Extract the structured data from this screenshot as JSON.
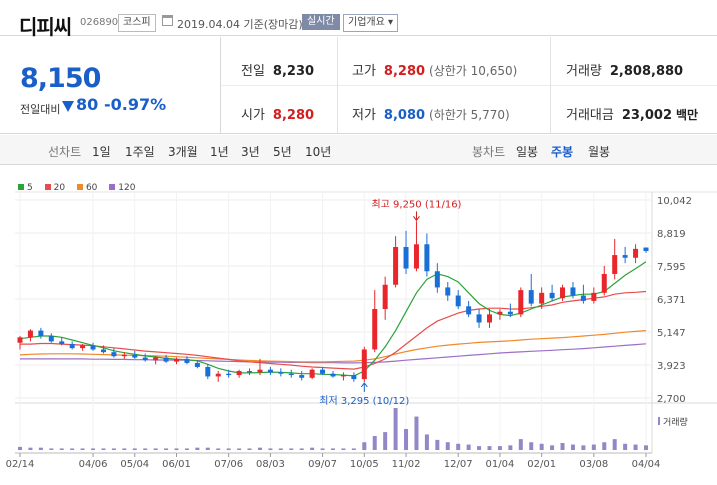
{
  "header": {
    "name": "디피씨",
    "code": "026890",
    "market": "코스피",
    "date": "2019.04.04 기준(장마감)",
    "realtime": "실시간",
    "company_info": "기업개요 ▾"
  },
  "summary": {
    "price": "8,150",
    "change_label": "전일대비",
    "change": "80",
    "change_pct": "-0.97%",
    "prev_label": "전일",
    "prev": "8,230",
    "high_label": "고가",
    "high": "8,280",
    "upper_limit": "(상한가 10,650)",
    "volume_label": "거래량",
    "volume": "2,808,880",
    "open_label": "시가",
    "open": "8,280",
    "low_label": "저가",
    "low": "8,080",
    "lower_limit": "(하한가 5,770)",
    "amount_label": "거래대금",
    "amount": "23,002",
    "amount_unit": "백만"
  },
  "periods": {
    "line_label": "선차트",
    "line_items": [
      "1일",
      "1주일",
      "3개월",
      "1년",
      "3년",
      "5년",
      "10년"
    ],
    "candle_label": "봉차트",
    "candle_items": [
      "일봉",
      "주봉",
      "월봉"
    ],
    "selected": "주봉"
  },
  "colors": {
    "up": "#e8262b",
    "down": "#1a6fd6",
    "ma5": "#2ba33a",
    "ma20": "#e84d4d",
    "ma60": "#f0892a",
    "ma120": "#9b6fc6",
    "volume": "#9487c8"
  },
  "chart_data": {
    "type": "candlestick",
    "legend": [
      "5",
      "20",
      "60",
      "120"
    ],
    "y_ticks": [
      10042,
      8819,
      7595,
      6371,
      5147,
      3923,
      2700
    ],
    "y_tick_labels": [
      "10,042",
      "8,819",
      "7,595",
      "6,371",
      "5,147",
      "3,923",
      "2,700"
    ],
    "ylim": [
      2700,
      10042
    ],
    "x_labels": [
      "02/14",
      "04/06",
      "05/04",
      "06/01",
      "07/06",
      "08/03",
      "09/07",
      "10/05",
      "11/02",
      "12/07",
      "01/04",
      "02/01",
      "03/08",
      "04/04"
    ],
    "annotation_high": "최고 9,250 (11/16)",
    "annotation_low": "최저 3,295 (10/12)",
    "volume_label": "거래량",
    "candles": [
      {
        "o": 4750,
        "h": 5000,
        "l": 4500,
        "c": 4950
      },
      {
        "o": 4950,
        "h": 5250,
        "l": 4800,
        "c": 5200
      },
      {
        "o": 5200,
        "h": 5300,
        "l": 4900,
        "c": 5000
      },
      {
        "o": 5000,
        "h": 5100,
        "l": 4750,
        "c": 4800
      },
      {
        "o": 4800,
        "h": 4950,
        "l": 4650,
        "c": 4700
      },
      {
        "o": 4700,
        "h": 4800,
        "l": 4500,
        "c": 4550
      },
      {
        "o": 4550,
        "h": 4700,
        "l": 4450,
        "c": 4650
      },
      {
        "o": 4650,
        "h": 4750,
        "l": 4450,
        "c": 4500
      },
      {
        "o": 4500,
        "h": 4650,
        "l": 4350,
        "c": 4400
      },
      {
        "o": 4400,
        "h": 4550,
        "l": 4200,
        "c": 4250
      },
      {
        "o": 4250,
        "h": 4400,
        "l": 4150,
        "c": 4300
      },
      {
        "o": 4300,
        "h": 4450,
        "l": 4150,
        "c": 4200
      },
      {
        "o": 4200,
        "h": 4350,
        "l": 4050,
        "c": 4100
      },
      {
        "o": 4100,
        "h": 4250,
        "l": 3950,
        "c": 4200
      },
      {
        "o": 4200,
        "h": 4300,
        "l": 4000,
        "c": 4050
      },
      {
        "o": 4050,
        "h": 4200,
        "l": 3950,
        "c": 4150
      },
      {
        "o": 4150,
        "h": 4250,
        "l": 3950,
        "c": 4000
      },
      {
        "o": 4000,
        "h": 4100,
        "l": 3800,
        "c": 3850
      },
      {
        "o": 3850,
        "h": 3950,
        "l": 3400,
        "c": 3500
      },
      {
        "o": 3500,
        "h": 3700,
        "l": 3300,
        "c": 3600
      },
      {
        "o": 3600,
        "h": 3750,
        "l": 3450,
        "c": 3550
      },
      {
        "o": 3550,
        "h": 3750,
        "l": 3450,
        "c": 3700
      },
      {
        "o": 3700,
        "h": 3800,
        "l": 3550,
        "c": 3650
      },
      {
        "o": 3650,
        "h": 4150,
        "l": 3550,
        "c": 3750
      },
      {
        "o": 3750,
        "h": 3850,
        "l": 3550,
        "c": 3650
      },
      {
        "o": 3650,
        "h": 3800,
        "l": 3500,
        "c": 3600
      },
      {
        "o": 3600,
        "h": 3750,
        "l": 3450,
        "c": 3550
      },
      {
        "o": 3550,
        "h": 3700,
        "l": 3350,
        "c": 3450
      },
      {
        "o": 3450,
        "h": 3800,
        "l": 3400,
        "c": 3750
      },
      {
        "o": 3750,
        "h": 3850,
        "l": 3550,
        "c": 3600
      },
      {
        "o": 3600,
        "h": 3700,
        "l": 3450,
        "c": 3500
      },
      {
        "o": 3500,
        "h": 3650,
        "l": 3350,
        "c": 3550
      },
      {
        "o": 3550,
        "h": 3650,
        "l": 3300,
        "c": 3400
      },
      {
        "o": 3400,
        "h": 4600,
        "l": 3295,
        "c": 4500
      },
      {
        "o": 4500,
        "h": 6700,
        "l": 4400,
        "c": 6000
      },
      {
        "o": 6000,
        "h": 7200,
        "l": 5600,
        "c": 6900
      },
      {
        "o": 6900,
        "h": 8700,
        "l": 6800,
        "c": 8300
      },
      {
        "o": 8300,
        "h": 8900,
        "l": 7300,
        "c": 7500
      },
      {
        "o": 7500,
        "h": 9250,
        "l": 7400,
        "c": 8400
      },
      {
        "o": 8400,
        "h": 8800,
        "l": 7200,
        "c": 7400
      },
      {
        "o": 7400,
        "h": 7700,
        "l": 6600,
        "c": 6800
      },
      {
        "o": 6800,
        "h": 7000,
        "l": 6300,
        "c": 6500
      },
      {
        "o": 6500,
        "h": 6700,
        "l": 6000,
        "c": 6100
      },
      {
        "o": 6100,
        "h": 6300,
        "l": 5700,
        "c": 5800
      },
      {
        "o": 5800,
        "h": 6000,
        "l": 5300,
        "c": 5500
      },
      {
        "o": 5500,
        "h": 6000,
        "l": 5300,
        "c": 5800
      },
      {
        "o": 5800,
        "h": 6000,
        "l": 5600,
        "c": 5900
      },
      {
        "o": 5900,
        "h": 6200,
        "l": 5700,
        "c": 5800
      },
      {
        "o": 5800,
        "h": 6800,
        "l": 5700,
        "c": 6700
      },
      {
        "o": 6700,
        "h": 7300,
        "l": 6100,
        "c": 6200
      },
      {
        "o": 6200,
        "h": 6800,
        "l": 6000,
        "c": 6600
      },
      {
        "o": 6600,
        "h": 6900,
        "l": 6300,
        "c": 6400
      },
      {
        "o": 6400,
        "h": 6900,
        "l": 6300,
        "c": 6800
      },
      {
        "o": 6800,
        "h": 7000,
        "l": 6400,
        "c": 6500
      },
      {
        "o": 6500,
        "h": 6900,
        "l": 6200,
        "c": 6300
      },
      {
        "o": 6300,
        "h": 6800,
        "l": 6200,
        "c": 6600
      },
      {
        "o": 6600,
        "h": 7600,
        "l": 6500,
        "c": 7300
      },
      {
        "o": 7300,
        "h": 8600,
        "l": 7100,
        "c": 8000
      },
      {
        "o": 8000,
        "h": 8300,
        "l": 7700,
        "c": 7900
      },
      {
        "o": 7900,
        "h": 8400,
        "l": 7700,
        "c": 8230
      },
      {
        "o": 8280,
        "h": 8280,
        "l": 8080,
        "c": 8150
      }
    ],
    "volumes": [
      4,
      3,
      3,
      2,
      2,
      2,
      2,
      2,
      2,
      2,
      2,
      2,
      2,
      2,
      2,
      2,
      2,
      3,
      3,
      2,
      2,
      2,
      2,
      3,
      2,
      2,
      2,
      2,
      3,
      2,
      2,
      2,
      2,
      10,
      18,
      23,
      54,
      27,
      43,
      20,
      13,
      10,
      8,
      7,
      5,
      5,
      5,
      6,
      14,
      10,
      8,
      6,
      9,
      7,
      6,
      7,
      10,
      14,
      8,
      7,
      6
    ],
    "ma5": [
      4900,
      4950,
      5000,
      5000,
      4950,
      4850,
      4750,
      4650,
      4560,
      4450,
      4380,
      4320,
      4260,
      4220,
      4170,
      4140,
      4120,
      4080,
      3950,
      3800,
      3700,
      3630,
      3630,
      3640,
      3660,
      3650,
      3630,
      3600,
      3600,
      3580,
      3570,
      3550,
      3520,
      3700,
      4100,
      4600,
      5200,
      5900,
      6600,
      7100,
      7300,
      7200,
      7000,
      6600,
      6200,
      5950,
      5800,
      5750,
      5850,
      6000,
      6150,
      6300,
      6450,
      6500,
      6550,
      6550,
      6650,
      6950,
      7250,
      7500,
      7750
    ],
    "ma20": [
      4700,
      4700,
      4720,
      4720,
      4700,
      4680,
      4660,
      4640,
      4600,
      4560,
      4520,
      4480,
      4440,
      4410,
      4380,
      4350,
      4320,
      4280,
      4230,
      4180,
      4130,
      4080,
      4040,
      4010,
      3980,
      3950,
      3920,
      3880,
      3850,
      3830,
      3810,
      3790,
      3770,
      3850,
      3980,
      4150,
      4400,
      4700,
      5000,
      5300,
      5550,
      5700,
      5850,
      5950,
      6000,
      6030,
      6030,
      6000,
      6000,
      6050,
      6100,
      6150,
      6250,
      6300,
      6350,
      6400,
      6450,
      6550,
      6600,
      6620,
      6650
    ],
    "ma60": [
      4300,
      4320,
      4330,
      4340,
      4340,
      4340,
      4330,
      4320,
      4310,
      4300,
      4290,
      4280,
      4270,
      4260,
      4250,
      4230,
      4210,
      4190,
      4170,
      4150,
      4130,
      4110,
      4090,
      4080,
      4070,
      4060,
      4050,
      4040,
      4040,
      4040,
      4050,
      4060,
      4070,
      4100,
      4150,
      4230,
      4330,
      4420,
      4500,
      4560,
      4620,
      4660,
      4700,
      4730,
      4760,
      4780,
      4800,
      4820,
      4850,
      4880,
      4900,
      4920,
      4940,
      4970,
      5000,
      5030,
      5060,
      5100,
      5140,
      5170,
      5200
    ],
    "ma120": [
      4150,
      4150,
      4150,
      4150,
      4150,
      4150,
      4150,
      4140,
      4140,
      4130,
      4130,
      4120,
      4120,
      4110,
      4110,
      4100,
      4100,
      4090,
      4080,
      4070,
      4060,
      4050,
      4040,
      4040,
      4030,
      4030,
      4020,
      4020,
      4010,
      4010,
      4010,
      4000,
      4000,
      4010,
      4020,
      4040,
      4070,
      4100,
      4130,
      4160,
      4190,
      4220,
      4250,
      4280,
      4310,
      4340,
      4370,
      4390,
      4410,
      4430,
      4450,
      4470,
      4490,
      4510,
      4530,
      4560,
      4590,
      4620,
      4650,
      4680,
      4710
    ]
  }
}
